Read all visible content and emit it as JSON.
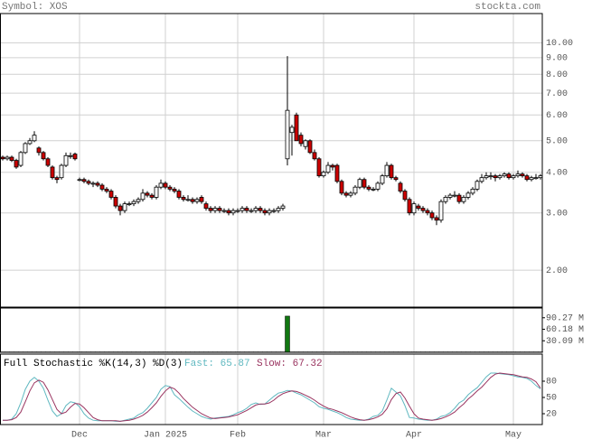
{
  "chart_data": [
    {
      "type": "candlestick",
      "title": "Symbol: XOS",
      "source": "stockta.com",
      "log_scale": true,
      "grid": true,
      "up_color": "#ffffff",
      "down_color": "#cc0000",
      "ylim": [
        1.54,
        12.3
      ],
      "yticks": [
        {
          "value": 2,
          "label": "2.00"
        },
        {
          "value": 3,
          "label": "3.00"
        },
        {
          "value": 4,
          "label": "4.00"
        },
        {
          "value": 5,
          "label": "5.00"
        },
        {
          "value": 6,
          "label": "6.00"
        },
        {
          "value": 7,
          "label": "7.00"
        },
        {
          "value": 8,
          "label": "8.00"
        },
        {
          "value": 9,
          "label": "9.00"
        },
        {
          "value": 10,
          "label": "10.00"
        }
      ],
      "ohlc": [
        [
          4.45,
          4.5,
          4.35,
          4.4
        ],
        [
          4.4,
          4.5,
          4.35,
          4.45
        ],
        [
          4.45,
          4.5,
          4.3,
          4.35
        ],
        [
          4.35,
          4.4,
          4.1,
          4.15
        ],
        [
          4.2,
          4.65,
          4.15,
          4.6
        ],
        [
          4.6,
          4.95,
          4.55,
          4.9
        ],
        [
          4.9,
          5.1,
          4.85,
          5.0
        ],
        [
          5.0,
          5.35,
          4.95,
          5.2
        ],
        [
          4.75,
          4.8,
          4.5,
          4.6
        ],
        [
          4.6,
          4.65,
          4.35,
          4.4
        ],
        [
          4.4,
          4.45,
          4.15,
          4.2
        ],
        [
          4.15,
          4.2,
          3.8,
          3.85
        ],
        [
          3.85,
          3.9,
          3.7,
          3.8
        ],
        [
          3.85,
          4.25,
          3.8,
          4.2
        ],
        [
          4.2,
          4.6,
          4.15,
          4.5
        ],
        [
          4.5,
          4.6,
          4.4,
          4.5
        ],
        [
          4.55,
          4.6,
          4.35,
          4.4
        ],
        [
          3.8,
          3.85,
          3.75,
          3.8
        ],
        [
          3.8,
          3.85,
          3.7,
          3.75
        ],
        [
          3.75,
          3.8,
          3.65,
          3.7
        ],
        [
          3.7,
          3.75,
          3.6,
          3.7
        ],
        [
          3.7,
          3.75,
          3.6,
          3.65
        ],
        [
          3.65,
          3.7,
          3.5,
          3.55
        ],
        [
          3.55,
          3.6,
          3.45,
          3.5
        ],
        [
          3.5,
          3.55,
          3.3,
          3.35
        ],
        [
          3.35,
          3.4,
          3.1,
          3.15
        ],
        [
          3.15,
          3.2,
          2.95,
          3.05
        ],
        [
          3.05,
          3.25,
          3.0,
          3.2
        ],
        [
          3.2,
          3.25,
          3.15,
          3.2
        ],
        [
          3.2,
          3.3,
          3.15,
          3.25
        ],
        [
          3.25,
          3.35,
          3.2,
          3.3
        ],
        [
          3.3,
          3.55,
          3.25,
          3.45
        ],
        [
          3.45,
          3.5,
          3.35,
          3.4
        ],
        [
          3.4,
          3.45,
          3.3,
          3.35
        ],
        [
          3.35,
          3.65,
          3.3,
          3.6
        ],
        [
          3.6,
          3.8,
          3.55,
          3.7
        ],
        [
          3.7,
          3.75,
          3.55,
          3.6
        ],
        [
          3.6,
          3.65,
          3.5,
          3.55
        ],
        [
          3.55,
          3.6,
          3.45,
          3.5
        ],
        [
          3.5,
          3.55,
          3.3,
          3.35
        ],
        [
          3.35,
          3.4,
          3.25,
          3.3
        ],
        [
          3.3,
          3.4,
          3.25,
          3.3
        ],
        [
          3.3,
          3.35,
          3.2,
          3.25
        ],
        [
          3.25,
          3.35,
          3.2,
          3.3
        ],
        [
          3.35,
          3.4,
          3.2,
          3.25
        ],
        [
          3.2,
          3.25,
          3.05,
          3.1
        ],
        [
          3.1,
          3.15,
          3.0,
          3.05
        ],
        [
          3.05,
          3.15,
          3.0,
          3.1
        ],
        [
          3.1,
          3.15,
          3.0,
          3.05
        ],
        [
          3.05,
          3.1,
          3.0,
          3.05
        ],
        [
          3.05,
          3.1,
          2.95,
          3.0
        ],
        [
          3.0,
          3.1,
          2.95,
          3.05
        ],
        [
          3.05,
          3.1,
          3.0,
          3.05
        ],
        [
          3.05,
          3.15,
          3.0,
          3.1
        ],
        [
          3.1,
          3.15,
          3.0,
          3.05
        ],
        [
          3.05,
          3.1,
          3.0,
          3.05
        ],
        [
          3.05,
          3.15,
          3.0,
          3.1
        ],
        [
          3.1,
          3.15,
          3.0,
          3.05
        ],
        [
          3.05,
          3.1,
          2.95,
          3.0
        ],
        [
          3.0,
          3.1,
          2.95,
          3.05
        ],
        [
          3.05,
          3.1,
          3.0,
          3.05
        ],
        [
          3.05,
          3.15,
          3.0,
          3.1
        ],
        [
          3.1,
          3.2,
          3.05,
          3.15
        ],
        [
          4.4,
          9.1,
          4.2,
          6.2
        ],
        [
          5.3,
          5.6,
          4.5,
          5.5
        ],
        [
          6.0,
          6.1,
          5.0,
          5.0
        ],
        [
          5.2,
          5.3,
          4.8,
          4.9
        ],
        [
          4.8,
          5.05,
          4.7,
          5.0
        ],
        [
          5.0,
          5.05,
          4.55,
          4.6
        ],
        [
          4.6,
          4.7,
          4.35,
          4.4
        ],
        [
          4.4,
          4.45,
          3.85,
          3.9
        ],
        [
          3.9,
          4.05,
          3.85,
          4.0
        ],
        [
          4.0,
          4.3,
          3.95,
          4.2
        ],
        [
          4.2,
          4.25,
          4.05,
          4.15
        ],
        [
          4.2,
          4.25,
          3.7,
          3.75
        ],
        [
          3.75,
          3.8,
          3.4,
          3.45
        ],
        [
          3.45,
          3.5,
          3.35,
          3.4
        ],
        [
          3.4,
          3.5,
          3.35,
          3.45
        ],
        [
          3.45,
          3.65,
          3.4,
          3.6
        ],
        [
          3.6,
          3.85,
          3.55,
          3.8
        ],
        [
          3.8,
          3.85,
          3.55,
          3.6
        ],
        [
          3.6,
          3.65,
          3.5,
          3.55
        ],
        [
          3.55,
          3.6,
          3.5,
          3.55
        ],
        [
          3.55,
          3.75,
          3.5,
          3.7
        ],
        [
          3.7,
          3.95,
          3.65,
          3.9
        ],
        [
          3.9,
          4.3,
          3.85,
          4.2
        ],
        [
          4.2,
          4.25,
          3.8,
          3.85
        ],
        [
          3.85,
          3.9,
          3.75,
          3.8
        ],
        [
          3.7,
          3.75,
          3.45,
          3.5
        ],
        [
          3.5,
          3.55,
          3.25,
          3.3
        ],
        [
          3.3,
          3.35,
          2.95,
          3.0
        ],
        [
          3.0,
          3.25,
          2.95,
          3.2
        ],
        [
          3.15,
          3.2,
          3.05,
          3.1
        ],
        [
          3.1,
          3.15,
          3.0,
          3.05
        ],
        [
          3.05,
          3.1,
          2.95,
          3.0
        ],
        [
          3.0,
          3.05,
          2.85,
          2.9
        ],
        [
          2.9,
          2.95,
          2.75,
          2.85
        ],
        [
          2.85,
          3.3,
          2.8,
          3.25
        ],
        [
          3.25,
          3.4,
          3.2,
          3.35
        ],
        [
          3.35,
          3.45,
          3.3,
          3.4
        ],
        [
          3.4,
          3.5,
          3.35,
          3.4
        ],
        [
          3.4,
          3.45,
          3.2,
          3.25
        ],
        [
          3.25,
          3.4,
          3.2,
          3.35
        ],
        [
          3.35,
          3.5,
          3.3,
          3.45
        ],
        [
          3.45,
          3.6,
          3.4,
          3.55
        ],
        [
          3.55,
          3.8,
          3.5,
          3.75
        ],
        [
          3.75,
          3.95,
          3.7,
          3.85
        ],
        [
          3.85,
          4.0,
          3.8,
          3.9
        ],
        [
          3.9,
          4.0,
          3.8,
          3.9
        ],
        [
          3.9,
          3.95,
          3.75,
          3.85
        ],
        [
          3.85,
          3.95,
          3.8,
          3.9
        ],
        [
          3.9,
          4.0,
          3.85,
          3.95
        ],
        [
          3.95,
          4.0,
          3.8,
          3.85
        ],
        [
          3.85,
          3.95,
          3.8,
          3.9
        ],
        [
          3.9,
          4.05,
          3.85,
          3.95
        ],
        [
          3.95,
          4.0,
          3.85,
          3.9
        ],
        [
          3.9,
          3.95,
          3.75,
          3.8
        ],
        [
          3.8,
          3.9,
          3.75,
          3.85
        ],
        [
          3.85,
          3.95,
          3.8,
          3.85
        ],
        [
          3.85,
          3.95,
          3.8,
          3.9
        ]
      ]
    },
    {
      "type": "bar",
      "color": "#117711",
      "grid": false,
      "ylim": [
        0,
        115.7
      ],
      "yticks": [
        {
          "value": 30.09,
          "label": "30.09 M"
        },
        {
          "value": 60.18,
          "label": "60.18 M"
        },
        {
          "value": 90.27,
          "label": "90.27 M"
        }
      ],
      "values": [
        1,
        1,
        1,
        1,
        1,
        1,
        1,
        1,
        1,
        1,
        1,
        1,
        1,
        1,
        1,
        1,
        1,
        1,
        1,
        1,
        1,
        1,
        1,
        1,
        1,
        1,
        1,
        1,
        1,
        1,
        1,
        1,
        1,
        1,
        1,
        1,
        1,
        1,
        1,
        1,
        1,
        1,
        1,
        1,
        1,
        1,
        1,
        1,
        1,
        1,
        1,
        1,
        1,
        1,
        1,
        1,
        1,
        1,
        1,
        1,
        1,
        1,
        1,
        94.6,
        1,
        1,
        1,
        1,
        1,
        1,
        1,
        1,
        1,
        1,
        1,
        1,
        1,
        1,
        1,
        1,
        1,
        1,
        1,
        1,
        1,
        1,
        1,
        1,
        1,
        1,
        1,
        1,
        1,
        1,
        1,
        1,
        1,
        1,
        1,
        1,
        1,
        1,
        1,
        1,
        1,
        1,
        1,
        1,
        1,
        1,
        1,
        1,
        1,
        1,
        1,
        1,
        1,
        1,
        1,
        1
      ]
    },
    {
      "type": "line",
      "title": "Full Stochastic %K(14,3) %D(3)",
      "grid": false,
      "ylim": [
        0,
        130
      ],
      "yticks": [
        20,
        50,
        80
      ],
      "categories": [
        null,
        null,
        null,
        null,
        null,
        null,
        null,
        null,
        null,
        null,
        null,
        null,
        null,
        null,
        null,
        null,
        null,
        "Dec",
        null,
        null,
        null,
        null,
        null,
        null,
        null,
        null,
        null,
        null,
        null,
        null,
        null,
        null,
        null,
        null,
        null,
        null,
        "Jan 2025",
        null,
        null,
        null,
        null,
        null,
        null,
        null,
        null,
        null,
        null,
        null,
        null,
        null,
        null,
        null,
        "Feb",
        null,
        null,
        null,
        null,
        null,
        null,
        null,
        null,
        null,
        null,
        null,
        null,
        null,
        null,
        null,
        null,
        null,
        null,
        "Mar",
        null,
        null,
        null,
        null,
        null,
        null,
        null,
        null,
        null,
        null,
        null,
        null,
        null,
        null,
        null,
        null,
        null,
        null,
        null,
        "Apr",
        null,
        null,
        null,
        null,
        null,
        null,
        null,
        null,
        null,
        null,
        null,
        null,
        null,
        null,
        null,
        null,
        null,
        null,
        null,
        null,
        null,
        "May",
        null,
        null,
        null,
        null,
        null,
        null
      ],
      "series": [
        {
          "name": "Fast: 65.87",
          "color": "#5fb8c0",
          "values": [
            8,
            8,
            10,
            20,
            40,
            65,
            80,
            87,
            80,
            67,
            45,
            25,
            15,
            20,
            35,
            42,
            40,
            33,
            20,
            12,
            8,
            7,
            7,
            7,
            7,
            6,
            6,
            8,
            10,
            12,
            18,
            22,
            30,
            40,
            50,
            65,
            72,
            70,
            55,
            48,
            40,
            32,
            25,
            20,
            15,
            12,
            10,
            12,
            13,
            14,
            15,
            18,
            22,
            25,
            30,
            37,
            40,
            37,
            38,
            45,
            52,
            58,
            60,
            63,
            62,
            58,
            55,
            50,
            45,
            40,
            33,
            30,
            28,
            25,
            22,
            18,
            13,
            10,
            9,
            8,
            8,
            10,
            15,
            17,
            25,
            45,
            67,
            60,
            53,
            35,
            13,
            12,
            10,
            9,
            8,
            8,
            10,
            15,
            17,
            22,
            30,
            40,
            45,
            55,
            62,
            68,
            78,
            88,
            95,
            95,
            94,
            93,
            92,
            90,
            88,
            87,
            85,
            80,
            72,
            65.87
          ]
        },
        {
          "name": "Slow: 67.32",
          "color": "#99335f",
          "values": [
            8,
            8,
            9,
            13,
            23,
            42,
            62,
            77,
            82,
            78,
            64,
            46,
            28,
            20,
            23,
            32,
            39,
            38,
            31,
            22,
            13,
            9,
            7,
            7,
            7,
            7,
            6,
            7,
            8,
            10,
            13,
            17,
            23,
            31,
            40,
            52,
            62,
            69,
            66,
            58,
            48,
            40,
            32,
            26,
            20,
            16,
            12,
            11,
            12,
            13,
            14,
            16,
            18,
            22,
            26,
            31,
            36,
            38,
            38,
            40,
            45,
            52,
            57,
            60,
            62,
            61,
            58,
            54,
            50,
            45,
            39,
            34,
            30,
            28,
            25,
            22,
            18,
            14,
            11,
            9,
            8,
            9,
            11,
            14,
            19,
            29,
            46,
            57,
            60,
            49,
            34,
            20,
            12,
            10,
            9,
            8,
            9,
            11,
            14,
            18,
            23,
            31,
            38,
            47,
            54,
            62,
            69,
            78,
            87,
            93,
            95,
            94,
            93,
            92,
            90,
            88,
            87,
            84,
            79,
            67.32
          ]
        }
      ]
    }
  ]
}
